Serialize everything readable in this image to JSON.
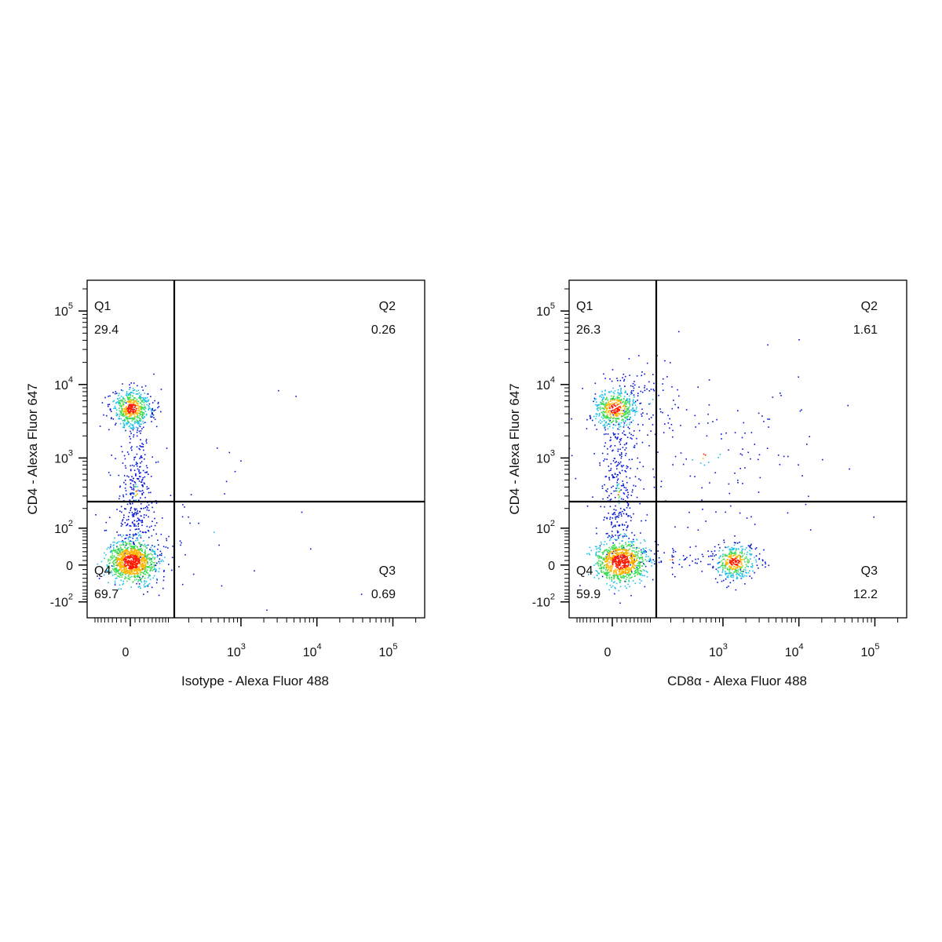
{
  "plots": [
    {
      "x_label": "Isotype - Alexa Fluor 488",
      "y_label": "CD4 - Alexa Fluor 647",
      "xlim": [
        -120,
        262144
      ],
      "ylim": [
        -176,
        262144
      ],
      "xticks": [
        0,
        {
          "value": 1000,
          "label": "10",
          "exponent": "3"
        },
        {
          "value": 10000,
          "label": "10",
          "exponent": "4"
        },
        {
          "value": 100000,
          "label": "10",
          "exponent": "5"
        }
      ],
      "yticks": [
        {
          "value": -100,
          "label": "-10",
          "exponent": "2"
        },
        0,
        {
          "value": 100,
          "label": "10",
          "exponent": "2"
        },
        {
          "value": 1000,
          "label": "10",
          "exponent": "3"
        },
        {
          "value": 10000,
          "label": "10",
          "exponent": "4"
        },
        {
          "value": 100000,
          "label": "10",
          "exponent": "5"
        }
      ],
      "quadrants": [
        {
          "name": "Q1",
          "value": 29.4
        },
        {
          "name": "Q2",
          "value": 0.26
        },
        {
          "name": "Q3",
          "value": 0.69
        },
        {
          "name": "Q4",
          "value": 69.7
        }
      ]
    },
    {
      "x_label": "CD8α - Alexa Fluor 488",
      "y_label": "CD4 - Alexa Fluor 647",
      "xlim": [
        -120,
        262144
      ],
      "ylim": [
        -176,
        262144
      ],
      "xticks": [
        0,
        {
          "value": 1000,
          "label": "10",
          "exponent": "3"
        },
        {
          "value": 10000,
          "label": "10",
          "exponent": "4"
        },
        {
          "value": 100000,
          "label": "10",
          "exponent": "5"
        }
      ],
      "yticks": [
        {
          "value": -100,
          "label": "-10",
          "exponent": "2"
        },
        0,
        {
          "value": 100,
          "label": "10",
          "exponent": "2"
        },
        {
          "value": 1000,
          "label": "10",
          "exponent": "3"
        },
        {
          "value": 10000,
          "label": "10",
          "exponent": "4"
        },
        {
          "value": 100000,
          "label": "10",
          "exponent": "5"
        }
      ],
      "quadrants": [
        {
          "name": "Q1",
          "value": 26.3
        },
        {
          "name": "Q2",
          "value": 1.61
        },
        {
          "name": "Q3",
          "value": 12.2
        },
        {
          "name": "Q4",
          "value": 59.9
        }
      ]
    }
  ]
}
